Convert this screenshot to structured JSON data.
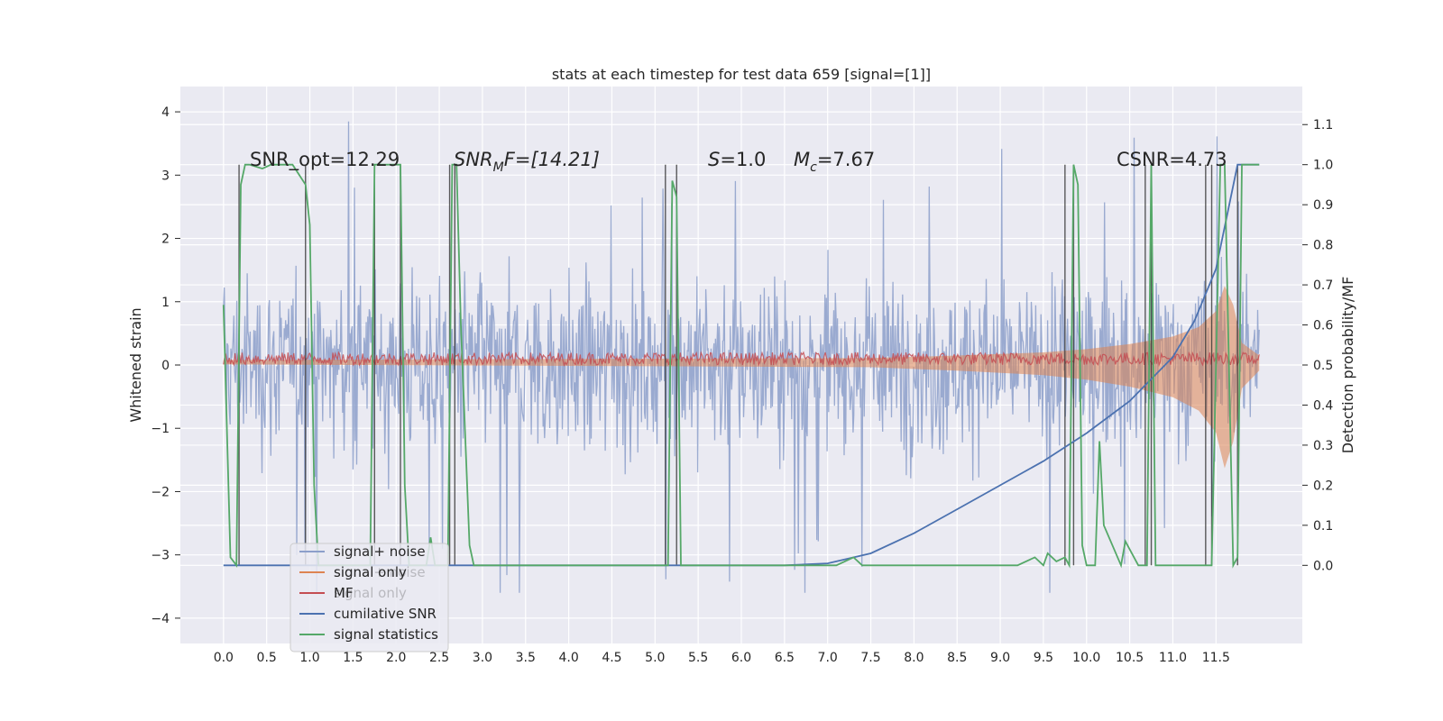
{
  "chart_data": {
    "type": "line",
    "title": "stats at each timestep for test data 659 [signal=[1]]",
    "xlabel": "",
    "ylabel_left": "Whitened strain",
    "ylabel_right": "Detection probability/MF",
    "xlim": [
      -0.5,
      12.5
    ],
    "ylim_left": [
      -4.4,
      4.4
    ],
    "ylim_right": [
      -0.195,
      1.195
    ],
    "x_ticks": [
      "0.0",
      "0.5",
      "1.0",
      "1.5",
      "2.0",
      "2.5",
      "3.0",
      "3.5",
      "4.0",
      "4.5",
      "5.0",
      "5.5",
      "6.0",
      "6.5",
      "7.0",
      "7.5",
      "8.0",
      "8.5",
      "9.0",
      "9.5",
      "10.0",
      "10.5",
      "11.0",
      "11.5"
    ],
    "y_ticks_left": [
      "−4",
      "−3",
      "−2",
      "−1",
      "0",
      "1",
      "2",
      "3",
      "4"
    ],
    "y_ticks_right": [
      "0.0",
      "0.1",
      "0.2",
      "0.3",
      "0.4",
      "0.5",
      "0.6",
      "0.7",
      "0.8",
      "0.9",
      "1.0",
      "1.1"
    ],
    "grid": true,
    "legend_position": "lower-left",
    "annotations": {
      "snr_opt": "SNR_opt=12.29",
      "snr_mf_label": "SNR",
      "snr_mf_sub": "M",
      "snr_mf_suffix": "F=[14.21]",
      "s_label": "S",
      "s_value": "=1.0",
      "mc_label": "M",
      "mc_sub": "c",
      "mc_value": "=7.67",
      "csnr": "CSNR=4.73"
    },
    "legend": [
      {
        "label": "signal+ noise",
        "color": "#8c9fca"
      },
      {
        "label": "signal only",
        "color": "#dd8452"
      },
      {
        "label": "MF",
        "color": "#c44e52"
      },
      {
        "label": "cumilative SNR",
        "color": "#4c72b0"
      },
      {
        "label": "signal statistics",
        "color": "#55a868"
      }
    ],
    "faded_legend_texts": [
      "signal+ noise",
      "signal only",
      "signal statistics"
    ],
    "series": [
      {
        "name": "signal+ noise",
        "axis": "left",
        "color": "#8c9fca",
        "description_range": [
          -3.6,
          3.9
        ],
        "x_range": [
          0.0,
          12.0
        ]
      },
      {
        "name": "signal only",
        "axis": "left",
        "color": "#dd8452",
        "x": [
          0.0,
          7.5,
          8.5,
          9.5,
          10.0,
          10.5,
          11.0,
          11.3,
          11.5,
          11.6,
          11.7,
          11.8,
          12.0
        ],
        "y": [
          0.03,
          0.06,
          0.1,
          0.15,
          0.2,
          0.28,
          0.4,
          0.55,
          0.8,
          1.2,
          0.9,
          0.3,
          0.1
        ]
      },
      {
        "name": "MF",
        "axis": "left",
        "color": "#c44e52",
        "x_range": [
          0.0,
          12.0
        ],
        "center": 0.1,
        "amplitude": 0.1
      },
      {
        "name": "cumilative SNR",
        "axis": "right",
        "color": "#4c72b0",
        "x": [
          0.0,
          6.5,
          7.0,
          7.5,
          8.0,
          8.5,
          9.0,
          9.5,
          10.0,
          10.5,
          11.0,
          11.25,
          11.5,
          11.75,
          11.8,
          12.0
        ],
        "y": [
          0.0,
          0.0,
          0.005,
          0.03,
          0.08,
          0.14,
          0.2,
          0.26,
          0.33,
          0.41,
          0.52,
          0.61,
          0.74,
          1.0,
          1.0,
          1.0
        ]
      },
      {
        "name": "signal statistics",
        "axis": "right",
        "color": "#55a868",
        "x": [
          0.0,
          0.08,
          0.15,
          0.2,
          0.25,
          0.3,
          0.45,
          0.55,
          0.8,
          0.95,
          1.0,
          1.05,
          1.1,
          1.7,
          1.75,
          1.8,
          1.85,
          2.0,
          2.05,
          2.1,
          2.15,
          2.35,
          2.4,
          2.45,
          2.6,
          2.65,
          2.7,
          2.75,
          2.85,
          2.9,
          5.15,
          5.2,
          5.25,
          5.3,
          7.1,
          7.3,
          7.4,
          9.2,
          9.4,
          9.5,
          9.55,
          9.65,
          9.75,
          9.8,
          9.85,
          9.9,
          9.95,
          10.0,
          10.1,
          10.15,
          10.2,
          10.4,
          10.45,
          10.55,
          10.6,
          10.7,
          10.75,
          10.8,
          11.4,
          11.45,
          11.55,
          11.6,
          11.7,
          11.75,
          11.8,
          12.0
        ],
        "y": [
          0.65,
          0.02,
          0.0,
          0.95,
          1.0,
          1.0,
          0.99,
          1.0,
          1.0,
          0.95,
          0.85,
          0.2,
          0.0,
          0.0,
          1.0,
          1.0,
          1.0,
          1.0,
          1.0,
          0.2,
          0.0,
          0.0,
          0.07,
          0.0,
          0.0,
          1.0,
          1.0,
          0.6,
          0.05,
          0.0,
          0.0,
          0.96,
          0.92,
          0.0,
          0.0,
          0.02,
          0.0,
          0.0,
          0.02,
          0.0,
          0.03,
          0.01,
          0.02,
          0.0,
          1.0,
          0.95,
          0.05,
          0.0,
          0.0,
          0.31,
          0.1,
          0.0,
          0.06,
          0.02,
          0.0,
          0.0,
          1.0,
          0.0,
          0.0,
          0.0,
          1.0,
          1.0,
          0.0,
          0.02,
          1.0,
          1.0
        ]
      }
    ],
    "vertical_markers": [
      0.18,
      0.95,
      1.75,
      2.05,
      2.62,
      2.68,
      5.12,
      5.25,
      9.75,
      9.85,
      10.68,
      10.75,
      11.38,
      11.45,
      11.75
    ]
  }
}
